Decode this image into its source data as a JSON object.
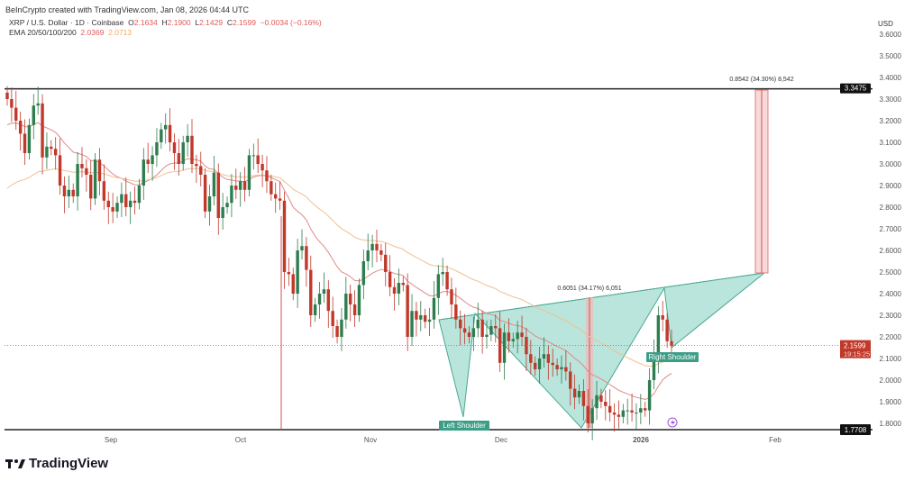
{
  "header": {
    "credit": "BeInCrypto created with TradingView.com, Jan 08, 2026 04:44 UTC"
  },
  "legend": {
    "symbol": "XRP / U.S. Dollar · 1D · Coinbase",
    "open_label": "O",
    "open": "2.1634",
    "high_label": "H",
    "high": "2.1900",
    "low_label": "L",
    "low": "2.1429",
    "close_label": "C",
    "close": "2.1599",
    "change": "−0.0034 (−0.16%)",
    "ema_label": "EMA 20/50/100/200",
    "ema20": "2.0369",
    "ema50": "2.0713"
  },
  "axis": {
    "currency": "USD",
    "price_ticks": [
      "3.6000",
      "3.5000",
      "3.4000",
      "3.3000",
      "3.2000",
      "3.1000",
      "3.0000",
      "2.9000",
      "2.8000",
      "2.7000",
      "2.6000",
      "2.5000",
      "2.4000",
      "2.3000",
      "2.2000",
      "2.1000",
      "2.0000",
      "1.9000",
      "1.8000"
    ],
    "time_labels": [
      "Sep",
      "Oct",
      "Nov",
      "Dec",
      "2026",
      "Feb"
    ],
    "resistance_tag": "3.3475",
    "support_tag": "1.7708",
    "last_price_tag": "2.1599",
    "countdown": "19:15:25"
  },
  "annotations": {
    "left_shoulder": "Left Shoulder",
    "right_shoulder": "Right Shoulder",
    "measure_head": "0.6051 (34.17%) 6,051",
    "measure_target": "0.8542 (34.30%) 8,542"
  },
  "colors": {
    "up": "#2e7d4f",
    "down": "#c0392b",
    "pattern": "#7fcfbf",
    "ema20": "#e08a8a",
    "ema50": "#f0c090"
  },
  "chart_data": {
    "type": "candlestick",
    "interval": "1D",
    "closes": [
      3.3,
      3.26,
      3.2,
      3.14,
      3.05,
      3.18,
      3.27,
      3.28,
      3.03,
      3.08,
      3.07,
      3.04,
      2.9,
      2.85,
      2.88,
      2.85,
      3.0,
      2.98,
      2.95,
      2.84,
      3.02,
      2.92,
      2.83,
      2.8,
      2.78,
      2.82,
      2.86,
      2.8,
      2.83,
      2.82,
      2.9,
      3.02,
      3.0,
      3.04,
      3.1,
      3.16,
      3.18,
      3.1,
      3.05,
      3.0,
      3.1,
      3.13,
      3.0,
      2.99,
      2.95,
      2.78,
      2.85,
      2.96,
      2.75,
      2.8,
      2.82,
      2.9,
      2.88,
      2.92,
      2.88,
      3.04,
      3.04,
      3.0,
      2.97,
      2.92,
      2.86,
      2.84,
      2.83,
      2.5,
      2.49,
      2.4,
      2.6,
      2.62,
      2.51,
      2.3,
      2.35,
      2.4,
      2.42,
      2.32,
      2.25,
      2.2,
      2.28,
      2.4,
      2.35,
      2.3,
      2.44,
      2.55,
      2.6,
      2.63,
      2.6,
      2.58,
      2.5,
      2.43,
      2.4,
      2.45,
      2.44,
      2.2,
      2.32,
      2.28,
      2.3,
      2.27,
      2.28,
      2.38,
      2.49,
      2.5,
      2.42,
      2.35,
      2.28,
      2.24,
      2.22,
      2.2,
      2.24,
      2.28,
      2.2,
      2.21,
      2.25,
      2.24,
      2.08,
      2.22,
      2.18,
      2.19,
      2.22,
      2.2,
      2.12,
      2.08,
      2.05,
      2.1,
      2.12,
      2.08,
      2.07,
      2.05,
      2.06,
      2.04,
      1.96,
      1.92,
      1.95,
      1.88,
      1.8,
      1.87,
      1.93,
      1.9,
      1.88,
      1.85,
      1.84,
      1.83,
      1.86,
      1.86,
      1.85,
      1.85,
      1.87,
      1.86,
      2.0,
      2.11,
      2.3,
      2.28,
      2.18,
      2.16
    ],
    "flash_crash_low": 1.7708,
    "ylim": [
      1.75,
      3.62
    ],
    "levels": [
      3.3475,
      1.7708
    ],
    "ema_periods": [
      20,
      50
    ]
  }
}
